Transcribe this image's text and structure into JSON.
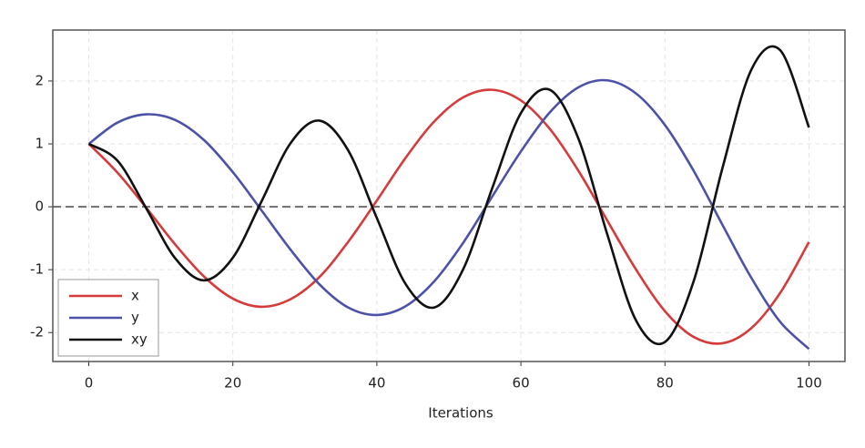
{
  "chart_data": {
    "type": "line",
    "xlabel": "Iterations",
    "x": [
      0,
      4,
      8,
      12,
      16,
      20,
      24,
      28,
      32,
      36,
      40,
      44,
      48,
      52,
      56,
      60,
      64,
      68,
      72,
      76,
      80,
      84,
      88,
      92,
      96,
      100
    ],
    "series": [
      {
        "name": "x",
        "color": "#d63b3b",
        "values": [
          1.0,
          0.54,
          -0.02,
          -0.6,
          -1.11,
          -1.46,
          -1.59,
          -1.47,
          -1.12,
          -0.56,
          0.1,
          0.78,
          1.36,
          1.74,
          1.86,
          1.69,
          1.24,
          0.57,
          -0.22,
          -1.0,
          -1.66,
          -2.07,
          -2.17,
          -1.93,
          -1.37,
          -0.56
        ]
      },
      {
        "name": "y",
        "color": "#4c52a8",
        "values": [
          1.0,
          1.34,
          1.47,
          1.38,
          1.06,
          0.55,
          -0.06,
          -0.68,
          -1.23,
          -1.6,
          -1.72,
          -1.58,
          -1.18,
          -0.57,
          0.16,
          0.88,
          1.5,
          1.9,
          2.01,
          1.8,
          1.3,
          0.57,
          -0.29,
          -1.13,
          -1.83,
          -2.26
        ]
      },
      {
        "name": "xy",
        "color": "#111111",
        "values": [
          1.0,
          0.73,
          -0.03,
          -0.82,
          -1.17,
          -0.81,
          0.09,
          1.01,
          1.37,
          0.9,
          -0.18,
          -1.23,
          -1.6,
          -0.99,
          0.29,
          1.49,
          1.86,
          1.08,
          -0.44,
          -1.81,
          -2.15,
          -1.18,
          0.62,
          2.18,
          2.49,
          1.26
        ]
      }
    ],
    "xlim": [
      -5,
      105
    ],
    "ylim": [
      -2.46,
      2.81
    ],
    "xticks": [
      0,
      20,
      40,
      60,
      80,
      100
    ],
    "yticks": [
      -2,
      -1,
      0,
      1,
      2
    ],
    "grid": true,
    "reference_line": 0,
    "legend": "lower left"
  }
}
